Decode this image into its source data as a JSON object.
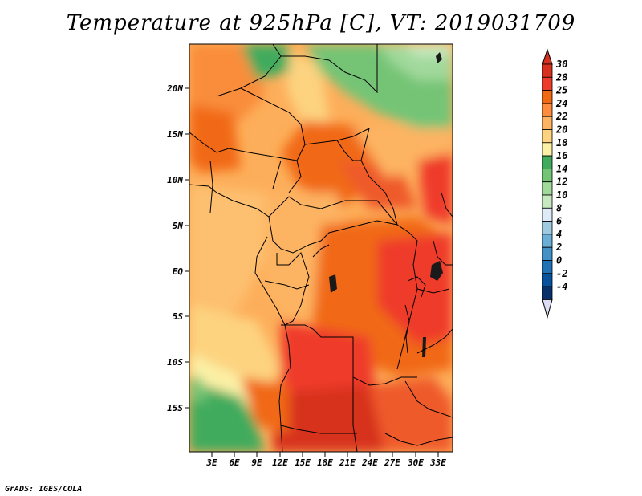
{
  "title": "Temperature at 925hPa [C], VT: 2019031709",
  "credit": "GrADS: IGES/COLA",
  "map": {
    "lat_labels": [
      "20N",
      "15N",
      "10N",
      "5N",
      "EQ",
      "5S",
      "10S",
      "15S"
    ],
    "lon_labels": [
      "3E",
      "6E",
      "9E",
      "12E",
      "15E",
      "18E",
      "21E",
      "24E",
      "27E",
      "30E",
      "33E"
    ]
  },
  "colorbar": {
    "labels": [
      "30",
      "28",
      "25",
      "24",
      "22",
      "20",
      "18",
      "16",
      "14",
      "12",
      "10",
      "8",
      "6",
      "4",
      "2",
      "0",
      "-2",
      "-4"
    ],
    "colors": [
      "#d7301f",
      "#ef3b2c",
      "#f16913",
      "#fd8d3c",
      "#fdb462",
      "#fdd380",
      "#fbf0a6",
      "#41ab5d",
      "#74c476",
      "#a1d99b",
      "#c7e9c0",
      "#deebf7",
      "#9ecae1",
      "#6baed6",
      "#4292c6",
      "#2171b5",
      "#08519c",
      "#08306b"
    ]
  }
}
